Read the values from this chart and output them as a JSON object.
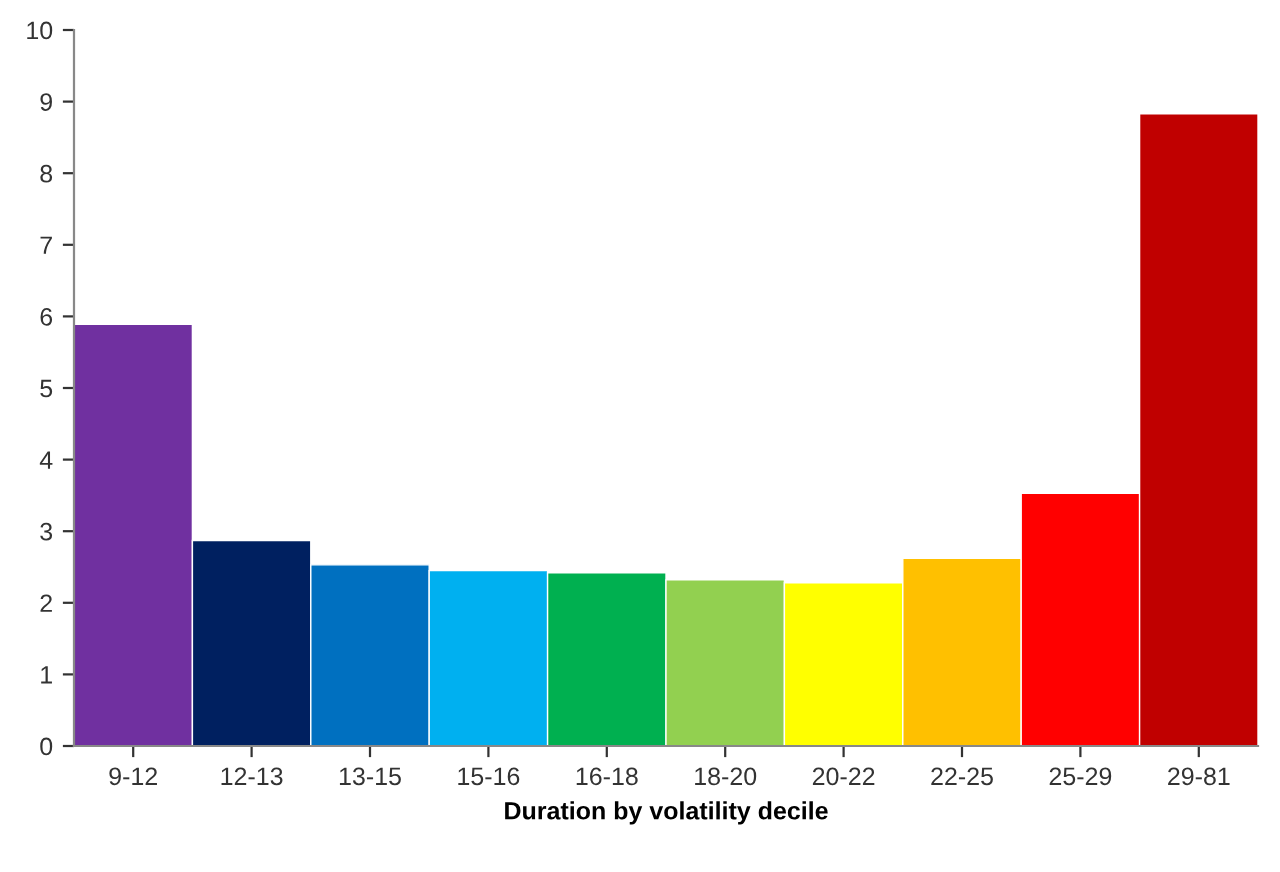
{
  "chart_data": {
    "type": "bar",
    "xlabel": "Duration by volatility decile",
    "categories": [
      "9-12",
      "12-13",
      "13-15",
      "15-16",
      "16-18",
      "18-20",
      "20-22",
      "22-25",
      "25-29",
      "29-81"
    ],
    "values": [
      5.89,
      2.87,
      2.53,
      2.45,
      2.42,
      2.32,
      2.28,
      2.62,
      3.53,
      8.83
    ],
    "colors": [
      "#7030a0",
      "#002060",
      "#0070c0",
      "#00b0f0",
      "#00b050",
      "#92d050",
      "#ffff00",
      "#ffc000",
      "#ff0000",
      "#c00000"
    ],
    "ylim": [
      0,
      10
    ],
    "yticks": [
      0,
      1,
      2,
      3,
      4,
      5,
      6,
      7,
      8,
      9,
      10
    ],
    "grid": false
  }
}
